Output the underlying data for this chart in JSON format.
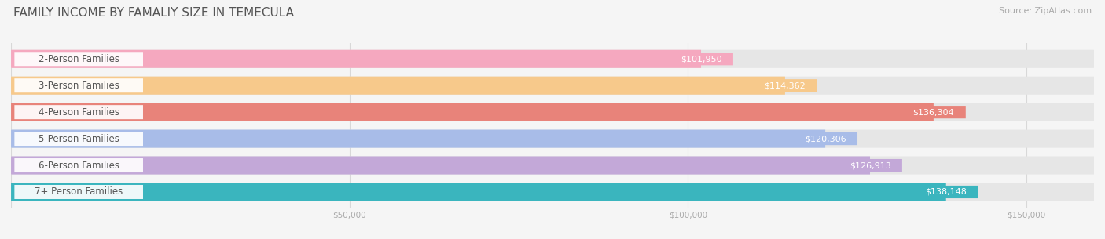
{
  "title": "FAMILY INCOME BY FAMALIY SIZE IN TEMECULA",
  "source": "Source: ZipAtlas.com",
  "categories": [
    "2-Person Families",
    "3-Person Families",
    "4-Person Families",
    "5-Person Families",
    "6-Person Families",
    "7+ Person Families"
  ],
  "values": [
    101950,
    114362,
    136304,
    120306,
    126913,
    138148
  ],
  "bar_colors": [
    "#f5a8bf",
    "#f7c98b",
    "#e8837a",
    "#a8bce8",
    "#c3a8d8",
    "#3ab5be"
  ],
  "value_bubble_colors": [
    "#f5a8bf",
    "#f7c98b",
    "#e8837a",
    "#a8bce8",
    "#c3a8d8",
    "#3ab5be"
  ],
  "value_text_colors": [
    "#c06080",
    "#c07820",
    "#ffffff",
    "#4060a8",
    "#7840a0",
    "#ffffff"
  ],
  "bg_color": "#f5f5f5",
  "bar_bg_color": "#e8e8e8",
  "xlim": [
    0,
    160000
  ],
  "xticks": [
    0,
    50000,
    100000,
    150000
  ],
  "xtick_labels": [
    "$50,000",
    "$100,000",
    "$150,000"
  ],
  "title_fontsize": 11,
  "source_fontsize": 8,
  "label_fontsize": 8.5,
  "value_fontsize": 8,
  "bar_height": 0.68,
  "background_color": "#f5f5f5"
}
